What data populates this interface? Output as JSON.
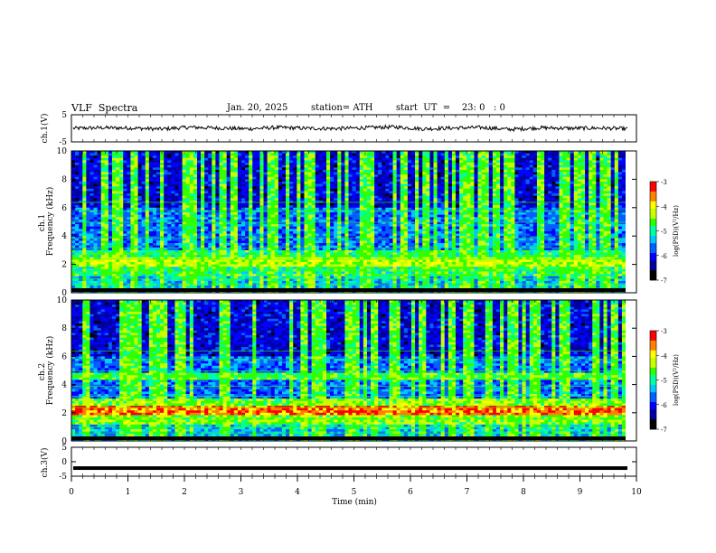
{
  "header": {
    "title": "VLF  Spectra",
    "date": "Jan. 20, 2025",
    "station": "station= ATH",
    "start": "start  UT  =    23: 0   : 0"
  },
  "chart_data": [
    {
      "type": "line",
      "panel": "ch1-waveform",
      "ylabel": "ch.1(V)",
      "ylim": [
        -5,
        5
      ],
      "yticks": [
        "5",
        "-5"
      ],
      "xlim": [
        0,
        10
      ],
      "series": [
        {
          "values": [
            0.0,
            0.2,
            0.1,
            -0.3,
            0.4,
            0.1,
            -0.2,
            0.3,
            0.0,
            -0.1,
            0.2,
            0.5,
            -0.2,
            0.1,
            0.3,
            -0.4,
            0.2,
            0.0,
            0.1,
            -0.2
          ]
        }
      ]
    },
    {
      "type": "heatmap",
      "panel": "ch1-spectrogram",
      "ylabel": "ch.1\nFrequency  (kHz)",
      "ylim": [
        0,
        10
      ],
      "yticks": [
        "0",
        "2",
        "4",
        "6",
        "8",
        "10"
      ],
      "xlim": [
        0,
        10
      ],
      "colorbar": {
        "label": "log(PSD)(V²/Hz)",
        "range": [
          -7,
          -3
        ],
        "ticks": [
          "-3",
          "-4",
          "-5",
          "-6",
          "-7"
        ]
      }
    },
    {
      "type": "heatmap",
      "panel": "ch2-spectrogram",
      "ylabel": "ch.2\nFrequency  (kHz)",
      "ylim": [
        0,
        10
      ],
      "yticks": [
        "0",
        "2",
        "4",
        "6",
        "8",
        "10"
      ],
      "xlim": [
        0,
        10
      ],
      "colorbar": {
        "label": "log(PSD)(V²/Hz)",
        "range": [
          -7,
          -3
        ],
        "ticks": [
          "-3",
          "-4",
          "-5",
          "-6",
          "-7"
        ]
      }
    },
    {
      "type": "line",
      "panel": "ch3-waveform",
      "ylabel": "ch.3(V)",
      "ylim": [
        -5,
        5
      ],
      "yticks": [
        "5",
        "0",
        "-5"
      ],
      "xlim": [
        0,
        10
      ],
      "series": [
        {
          "values": [
            -2.2,
            -2.2,
            -2.2,
            -2.2,
            -2.2,
            -2.2,
            -2.2,
            -2.2,
            -2.2,
            -2.2
          ]
        }
      ]
    }
  ],
  "x_axis": {
    "label": "Time  (min)",
    "range": [
      0,
      10
    ],
    "ticks": [
      "0",
      "1",
      "2",
      "3",
      "4",
      "5",
      "6",
      "7",
      "8",
      "9",
      "10"
    ]
  },
  "colors": {
    "colormap": [
      "#000000",
      "#0000a0",
      "#0000ff",
      "#0060ff",
      "#00c8ff",
      "#00ffa0",
      "#30ff00",
      "#c8ff00",
      "#ffff00",
      "#ff8000",
      "#ff0000",
      "#ffffff"
    ]
  }
}
